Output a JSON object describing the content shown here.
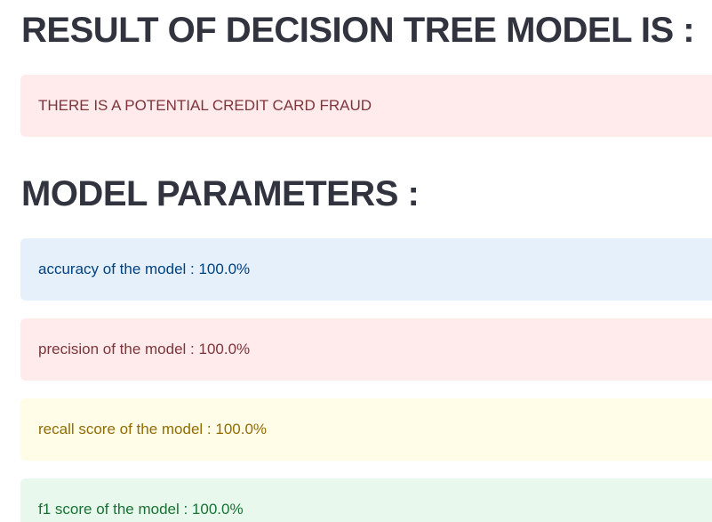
{
  "result_section": {
    "heading": "RESULT OF DECISION TREE MODEL IS :",
    "message": "THERE IS A POTENTIAL CREDIT CARD FRAUD"
  },
  "parameters_section": {
    "heading": "MODEL PARAMETERS :",
    "accuracy": "accuracy of the model : 100.0%",
    "precision": "precision of the model : 100.0%",
    "recall": "recall score of the model : 100.0%",
    "f1": "f1 score of the model : 100.0%"
  },
  "colors": {
    "error_bg": "#ffebeb",
    "info_bg": "#e6f0fb",
    "warning_bg": "#fffce7",
    "success_bg": "#e8f8ed"
  }
}
